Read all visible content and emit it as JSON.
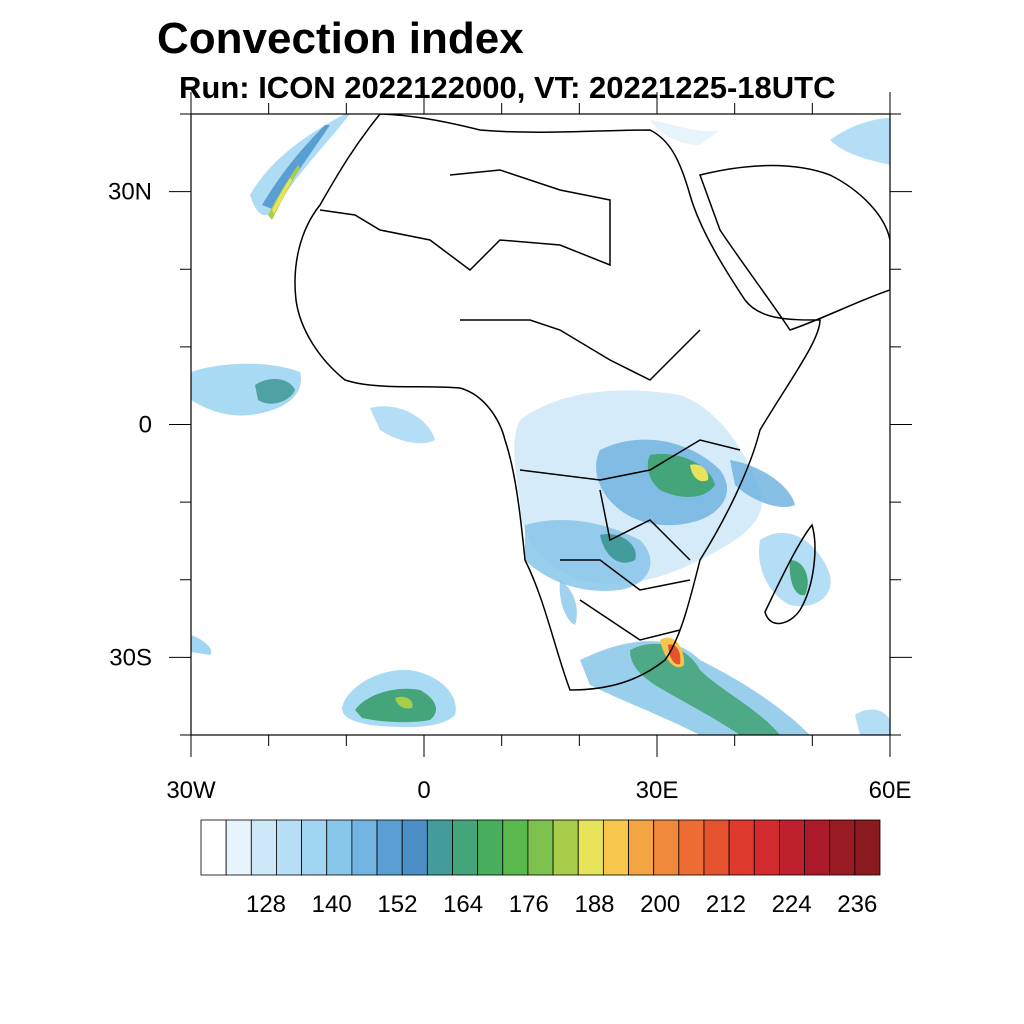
{
  "title": "Convection index",
  "subtitle": "Run: ICON 2022122000,  VT: 20221225-18UTC",
  "map": {
    "lon_range": [
      -30,
      60
    ],
    "lat_range": [
      -40,
      40
    ],
    "x_tick_labels": [
      {
        "lon": -30,
        "label": "30W"
      },
      {
        "lon": 0,
        "label": "0"
      },
      {
        "lon": 30,
        "label": "30E"
      },
      {
        "lon": 60,
        "label": "60E"
      }
    ],
    "y_tick_labels": [
      {
        "lat": 30,
        "label": "30N"
      },
      {
        "lat": 0,
        "label": "0"
      },
      {
        "lat": -30,
        "label": "30S"
      }
    ],
    "boundary_color": "#000000"
  },
  "colorbar": {
    "colors": [
      "#ffffff",
      "#e8f4fc",
      "#cfe8f8",
      "#b8dff5",
      "#a0d6f2",
      "#88c6ea",
      "#72b4e1",
      "#5a9fd4",
      "#4a8fc6",
      "#449b9b",
      "#45a57a",
      "#48ad5c",
      "#5ab94c",
      "#7cc24c",
      "#a8cd4a",
      "#e8e45a",
      "#f7c64d",
      "#f5a443",
      "#f0893c",
      "#ec6c34",
      "#e5532e",
      "#de3a2e",
      "#d22a2e",
      "#c01f2e",
      "#ac1a2a",
      "#9a1a22",
      "#8a1a1e"
    ],
    "tick_labels": [
      "128",
      "140",
      "152",
      "164",
      "176",
      "188",
      "200",
      "212",
      "224",
      "236"
    ]
  }
}
